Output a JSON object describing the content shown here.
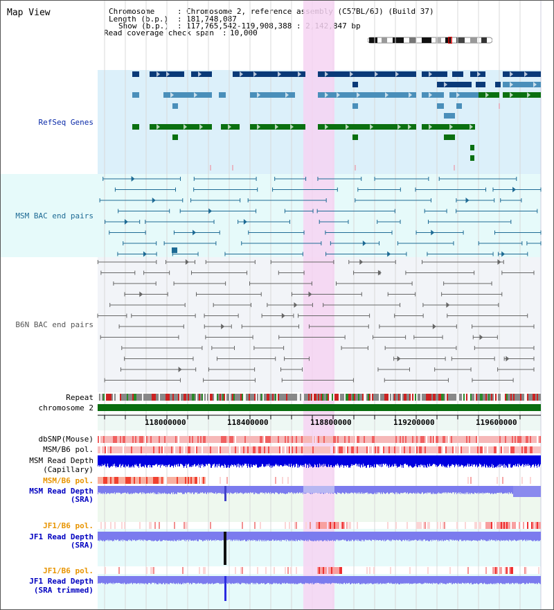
{
  "title": "Map View",
  "info": {
    "chromosome_key": "Chromosome",
    "chromosome_val": "Chromosome 2, reference assembly (C57BL/6J) (Build 37)",
    "length_key": "Length (b.p.)",
    "length_val": "181,748,087",
    "show_key": "Show (b.p.)",
    "show_val": "117,765,542-119,908,388 : 2,142,847 bp",
    "span_key": "Read coverage check span",
    "span_val": "10,000"
  },
  "tracks": {
    "refseq": "RefSeq Genes",
    "msm_bac": "MSM BAC end pairs",
    "b6n_bac": "B6N BAC end pairs",
    "repeat": "Repeat",
    "chromosome": "chromosome 2",
    "dbsnp": "dbSNP(Mouse)",
    "msm_b6_pol_1": "MSM/B6 pol.",
    "msm_depth_cap_1": "MSM Read Depth",
    "msm_depth_cap_2": "(Capillary)",
    "msm_b6_pol_2": "MSM/B6 pol.",
    "msm_depth_sra_1": "MSM Read Depth",
    "msm_depth_sra_2": "(SRA)",
    "jf1_pol_1": "JF1/B6 pol.",
    "jf1_depth_1": "JF1 Read Depth",
    "jf1_depth_2": "(SRA)",
    "jf1_pol_2": "JF1/B6 pol.",
    "jf1_trim_1": "JF1 Read Depth",
    "jf1_trim_2": "(SRA trimmed)"
  },
  "axis": {
    "ticks": [
      "118000000",
      "118400000",
      "118800000",
      "119200000",
      "119600000"
    ]
  },
  "colors": {
    "refseq_bg": "#dcf0fa",
    "msm_bg": "#e6fafa",
    "b6n_bg": "#f2f4f8",
    "highlight": "#f6d4f2",
    "refseq_dark": "#0a3a78",
    "refseq_mid": "#4a8fba",
    "refseq_green": "#0a7010",
    "msm_line": "#1d6a94",
    "b6n_line": "#666666",
    "depth_blue": "#0000e0",
    "depth_sra": "#7b7bee"
  }
}
